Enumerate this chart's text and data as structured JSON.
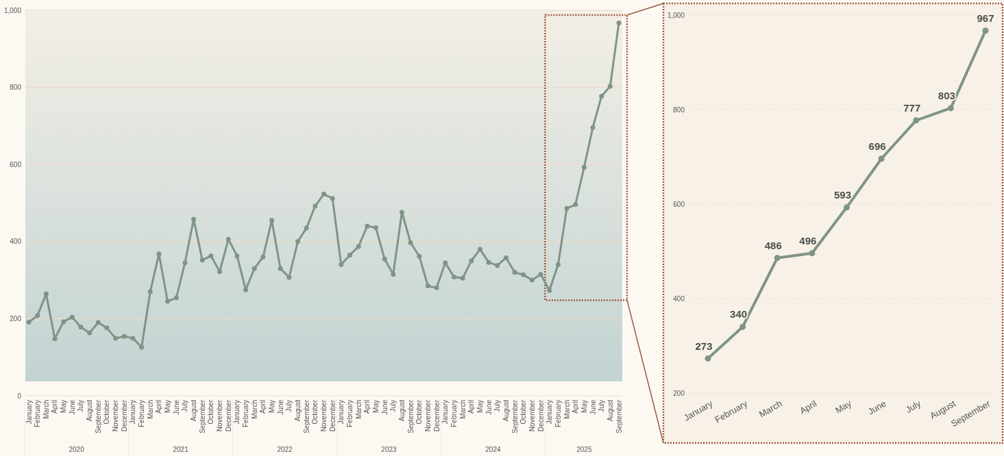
{
  "chart_data": [
    {
      "type": "line",
      "categories": [
        "January",
        "February",
        "March",
        "April",
        "May",
        "June",
        "July",
        "August",
        "September",
        "October",
        "November",
        "December",
        "January",
        "February",
        "March",
        "April",
        "May",
        "June",
        "July",
        "August",
        "September",
        "October",
        "November",
        "December",
        "January",
        "February",
        "March",
        "April",
        "May",
        "June",
        "July",
        "August",
        "September",
        "October",
        "November",
        "December",
        "January",
        "February",
        "March",
        "April",
        "May",
        "June",
        "July",
        "August",
        "September",
        "October",
        "November",
        "December",
        "January",
        "February",
        "March",
        "April",
        "May",
        "June",
        "July",
        "August",
        "September",
        "October",
        "November",
        "December",
        "January",
        "February",
        "March",
        "April",
        "May",
        "June",
        "July",
        "August",
        "September"
      ],
      "series": [
        {
          "color": "#7f9488",
          "values": [
            191,
            208,
            264,
            148,
            192,
            204,
            178,
            163,
            190,
            176,
            149,
            154,
            149,
            126,
            270,
            368,
            245,
            254,
            345,
            458,
            352,
            363,
            322,
            406,
            363,
            275,
            330,
            360,
            455,
            330,
            307,
            400,
            435,
            492,
            523,
            512,
            340,
            365,
            387,
            440,
            436,
            355,
            315,
            476,
            397,
            362,
            285,
            280,
            345,
            308,
            305,
            350,
            380,
            346,
            338,
            358,
            320,
            314,
            300,
            315,
            273,
            340,
            486,
            496,
            593,
            696,
            777,
            803,
            967
          ]
        }
      ],
      "annotations": [
        "2020",
        "2021",
        "2022",
        "2023",
        "2024",
        "2025"
      ],
      "ylim": [
        0,
        1000
      ],
      "yticks": [
        0,
        200,
        400,
        600,
        800,
        {
          "value": 1000,
          "label": "1,000"
        }
      ],
      "grid": "y",
      "marker": "circle",
      "line_style": "solid"
    },
    {
      "type": "line",
      "categories": [
        "January",
        "February",
        "March",
        "April",
        "May",
        "June",
        "July",
        "August",
        "September"
      ],
      "series": [
        {
          "color": "#7f9488",
          "values": [
            273,
            340,
            486,
            496,
            593,
            696,
            777,
            803,
            967
          ]
        }
      ],
      "ylim": [
        200,
        1000
      ],
      "yticks": [
        200,
        400,
        600,
        800,
        {
          "value": 1000,
          "label": "1,000"
        }
      ],
      "grid": "y",
      "marker": "circle",
      "line_style": "solid",
      "data_labels": true
    }
  ]
}
